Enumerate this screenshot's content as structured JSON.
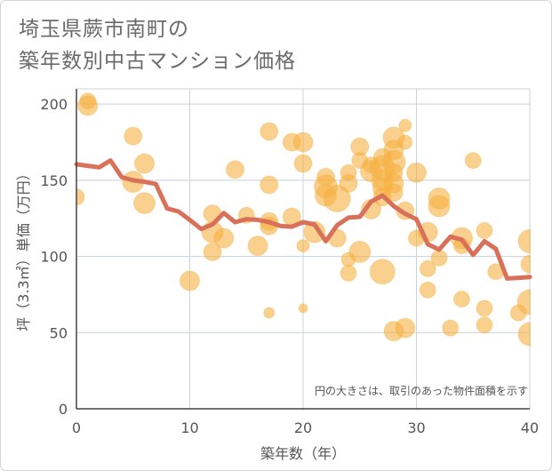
{
  "title_line1": "埼玉県蕨市南町の",
  "title_line2": "築年数別中古マンション価格",
  "chart_data": {
    "type": "scatter",
    "xlabel": "築年数（年）",
    "ylabel": "坪（3.3㎡）単価（万円）",
    "xlim": [
      0,
      40
    ],
    "ylim": [
      0,
      210
    ],
    "xticks": [
      "0",
      "10",
      "20",
      "30",
      "40"
    ],
    "yticks": [
      "0",
      "50",
      "100",
      "150",
      "200"
    ],
    "grid": true,
    "annotation": "円の大きさは、取引のあった物件面積を示す",
    "colors": {
      "bubble": "#f5b041",
      "line": "#d9705a",
      "grid": "#c8d3dc",
      "axis": "#444444"
    },
    "points": [
      {
        "x": 0,
        "y": 139,
        "s": 9
      },
      {
        "x": 1,
        "y": 202,
        "s": 9
      },
      {
        "x": 1,
        "y": 199,
        "s": 11
      },
      {
        "x": 5,
        "y": 179,
        "s": 10
      },
      {
        "x": 5,
        "y": 149,
        "s": 12
      },
      {
        "x": 6,
        "y": 161,
        "s": 11
      },
      {
        "x": 6,
        "y": 135,
        "s": 12
      },
      {
        "x": 10,
        "y": 84,
        "s": 11
      },
      {
        "x": 12,
        "y": 128,
        "s": 10
      },
      {
        "x": 12,
        "y": 116,
        "s": 12
      },
      {
        "x": 12,
        "y": 103,
        "s": 10
      },
      {
        "x": 13,
        "y": 112,
        "s": 11
      },
      {
        "x": 14,
        "y": 157,
        "s": 10
      },
      {
        "x": 15,
        "y": 127,
        "s": 9
      },
      {
        "x": 16,
        "y": 107,
        "s": 11
      },
      {
        "x": 17,
        "y": 182,
        "s": 10
      },
      {
        "x": 17,
        "y": 147,
        "s": 10
      },
      {
        "x": 17,
        "y": 123,
        "s": 10
      },
      {
        "x": 17,
        "y": 120,
        "s": 10
      },
      {
        "x": 17,
        "y": 63,
        "s": 6
      },
      {
        "x": 19,
        "y": 175,
        "s": 10
      },
      {
        "x": 19,
        "y": 126,
        "s": 10
      },
      {
        "x": 20,
        "y": 175,
        "s": 11
      },
      {
        "x": 20,
        "y": 161,
        "s": 10
      },
      {
        "x": 20,
        "y": 107,
        "s": 7
      },
      {
        "x": 20,
        "y": 66,
        "s": 5
      },
      {
        "x": 21,
        "y": 116,
        "s": 12
      },
      {
        "x": 22,
        "y": 152,
        "s": 10
      },
      {
        "x": 22,
        "y": 146,
        "s": 13
      },
      {
        "x": 22,
        "y": 140,
        "s": 12
      },
      {
        "x": 23,
        "y": 138,
        "s": 15
      },
      {
        "x": 23,
        "y": 112,
        "s": 10
      },
      {
        "x": 24,
        "y": 155,
        "s": 9
      },
      {
        "x": 24,
        "y": 148,
        "s": 10
      },
      {
        "x": 24,
        "y": 98,
        "s": 8
      },
      {
        "x": 24,
        "y": 89,
        "s": 9
      },
      {
        "x": 25,
        "y": 172,
        "s": 10
      },
      {
        "x": 25,
        "y": 163,
        "s": 9
      },
      {
        "x": 25,
        "y": 103,
        "s": 12
      },
      {
        "x": 26,
        "y": 160,
        "s": 9
      },
      {
        "x": 26,
        "y": 156,
        "s": 12
      },
      {
        "x": 26,
        "y": 131,
        "s": 11
      },
      {
        "x": 27,
        "y": 165,
        "s": 10
      },
      {
        "x": 27,
        "y": 158,
        "s": 14
      },
      {
        "x": 27,
        "y": 150,
        "s": 12
      },
      {
        "x": 27,
        "y": 145,
        "s": 11
      },
      {
        "x": 27,
        "y": 139,
        "s": 10
      },
      {
        "x": 27,
        "y": 90,
        "s": 14
      },
      {
        "x": 28,
        "y": 178,
        "s": 12
      },
      {
        "x": 28,
        "y": 170,
        "s": 11
      },
      {
        "x": 28,
        "y": 162,
        "s": 13
      },
      {
        "x": 28,
        "y": 155,
        "s": 10
      },
      {
        "x": 28,
        "y": 148,
        "s": 11
      },
      {
        "x": 28,
        "y": 142,
        "s": 10
      },
      {
        "x": 28,
        "y": 51,
        "s": 11
      },
      {
        "x": 29,
        "y": 186,
        "s": 7
      },
      {
        "x": 29,
        "y": 175,
        "s": 8
      },
      {
        "x": 29,
        "y": 130,
        "s": 10
      },
      {
        "x": 29,
        "y": 53,
        "s": 11
      },
      {
        "x": 30,
        "y": 155,
        "s": 11
      },
      {
        "x": 30,
        "y": 112,
        "s": 9
      },
      {
        "x": 31,
        "y": 116,
        "s": 11
      },
      {
        "x": 31,
        "y": 92,
        "s": 9
      },
      {
        "x": 31,
        "y": 78,
        "s": 9
      },
      {
        "x": 32,
        "y": 138,
        "s": 12
      },
      {
        "x": 32,
        "y": 133,
        "s": 12
      },
      {
        "x": 32,
        "y": 99,
        "s": 9
      },
      {
        "x": 33,
        "y": 53,
        "s": 9
      },
      {
        "x": 34,
        "y": 112,
        "s": 12
      },
      {
        "x": 34,
        "y": 107,
        "s": 9
      },
      {
        "x": 34,
        "y": 72,
        "s": 9
      },
      {
        "x": 35,
        "y": 163,
        "s": 9
      },
      {
        "x": 36,
        "y": 117,
        "s": 9
      },
      {
        "x": 36,
        "y": 66,
        "s": 9
      },
      {
        "x": 36,
        "y": 55,
        "s": 9
      },
      {
        "x": 37,
        "y": 90,
        "s": 9
      },
      {
        "x": 39,
        "y": 63,
        "s": 9
      },
      {
        "x": 40,
        "y": 110,
        "s": 13
      },
      {
        "x": 40,
        "y": 95,
        "s": 10
      },
      {
        "x": 40,
        "y": 70,
        "s": 14
      },
      {
        "x": 40,
        "y": 49,
        "s": 13
      }
    ],
    "trend": [
      [
        0,
        160.5
      ],
      [
        1,
        159.5
      ],
      [
        2,
        158.5
      ],
      [
        3,
        163
      ],
      [
        4,
        152
      ],
      [
        5,
        150
      ],
      [
        6,
        149
      ],
      [
        7,
        147.5
      ],
      [
        8,
        131.5
      ],
      [
        9,
        129.5
      ],
      [
        10,
        124
      ],
      [
        11,
        118
      ],
      [
        12,
        121
      ],
      [
        13,
        128.5
      ],
      [
        14,
        122.5
      ],
      [
        15,
        124.5
      ],
      [
        16,
        124
      ],
      [
        17,
        122.5
      ],
      [
        18,
        120
      ],
      [
        19,
        119.5
      ],
      [
        20,
        122.5
      ],
      [
        21,
        121
      ],
      [
        22,
        110
      ],
      [
        23,
        120.5
      ],
      [
        24,
        125.5
      ],
      [
        25,
        126
      ],
      [
        26,
        136
      ],
      [
        27,
        140
      ],
      [
        28,
        133
      ],
      [
        29,
        128
      ],
      [
        30,
        124.5
      ],
      [
        31,
        108
      ],
      [
        32,
        104.5
      ],
      [
        33,
        113
      ],
      [
        34,
        111
      ],
      [
        35,
        101
      ],
      [
        36,
        110
      ],
      [
        37,
        105
      ],
      [
        38,
        85.5
      ],
      [
        39,
        86
      ],
      [
        40,
        86.5
      ]
    ]
  }
}
